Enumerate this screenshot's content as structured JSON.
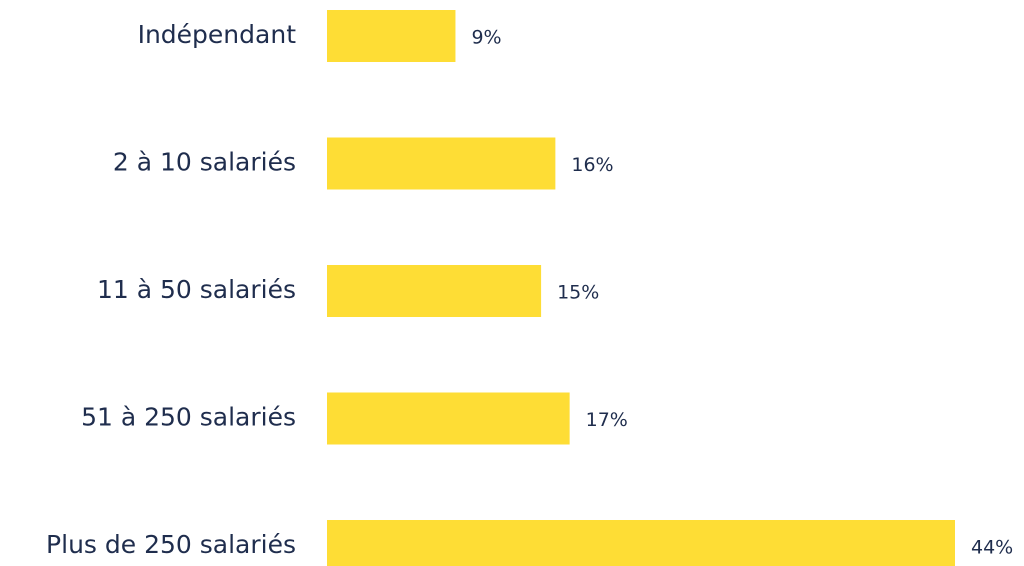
{
  "chart_data": {
    "type": "bar",
    "orientation": "horizontal",
    "categories": [
      "Indépendant",
      "2 à 10 salariés",
      "11 à 50 salariés",
      "51 à 250 salariés",
      "Plus de 250 salariés"
    ],
    "values": [
      9,
      16,
      15,
      17,
      44
    ],
    "value_labels": [
      "9%",
      "16%",
      "15%",
      "17%",
      "44%"
    ],
    "color": "#fedd35",
    "xlim": [
      0,
      44
    ]
  }
}
